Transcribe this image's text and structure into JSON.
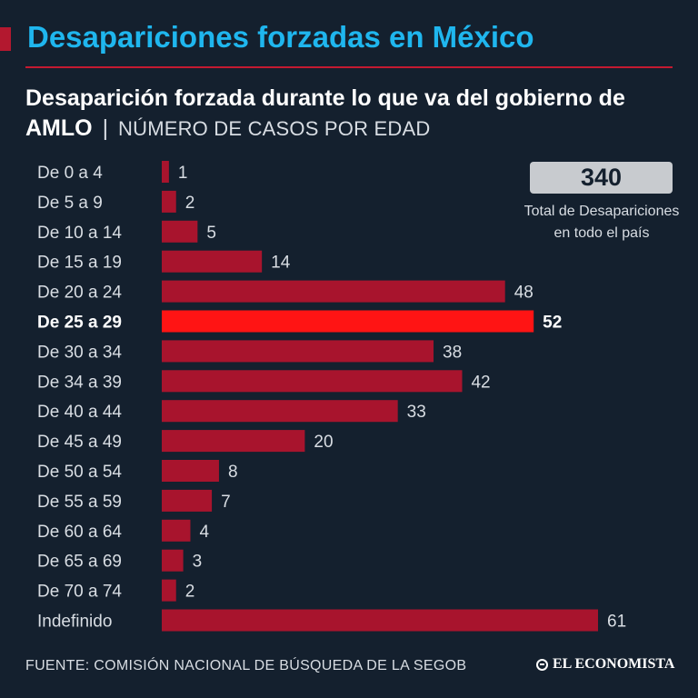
{
  "header": {
    "title": "Desapariciones forzadas en México",
    "subtitle_main": "Desaparición forzada durante lo que va del gobierno de AMLO",
    "subtitle_separator": "|",
    "subtitle_unit": "NÚMERO DE CASOS POR EDAD"
  },
  "summary": {
    "total_value": "340",
    "total_label_line1": "Total de Desapariciones",
    "total_label_line2": "en todo el país"
  },
  "footer": {
    "source": "FUENTE: COMISIÓN NACIONAL DE BÚSQUEDA DE LA SEGOB",
    "logo_text": "EL ECONOMISTA"
  },
  "colors": {
    "background": "#14202e",
    "bar": "#a8142d",
    "highlight_bar": "#ff1414",
    "title": "#1fb6ee",
    "label": "#d8dde3"
  },
  "chart_data": {
    "type": "bar",
    "orientation": "horizontal",
    "title": "Desaparición forzada durante lo que va del gobierno de AMLO",
    "xlabel": "",
    "ylabel": "",
    "unit": "NÚMERO DE CASOS POR EDAD",
    "xlim": [
      0,
      61
    ],
    "grid": false,
    "categories": [
      "De 0 a 4",
      "De 5 a 9",
      "De 10 a 14",
      "De 15 a 19",
      "De 20 a 24",
      "De 25 a 29",
      "De 30 a 34",
      "De 34 a 39",
      "De 40 a 44",
      "De 45 a 49",
      "De 50 a 54",
      "De 55 a 59",
      "De 60 a 64",
      "De 65 a 69",
      "De 70 a 74",
      "Indefinido"
    ],
    "values": [
      1,
      2,
      5,
      14,
      48,
      52,
      38,
      42,
      33,
      20,
      8,
      7,
      4,
      3,
      2,
      61
    ],
    "highlight_category": "De 25 a 29"
  }
}
